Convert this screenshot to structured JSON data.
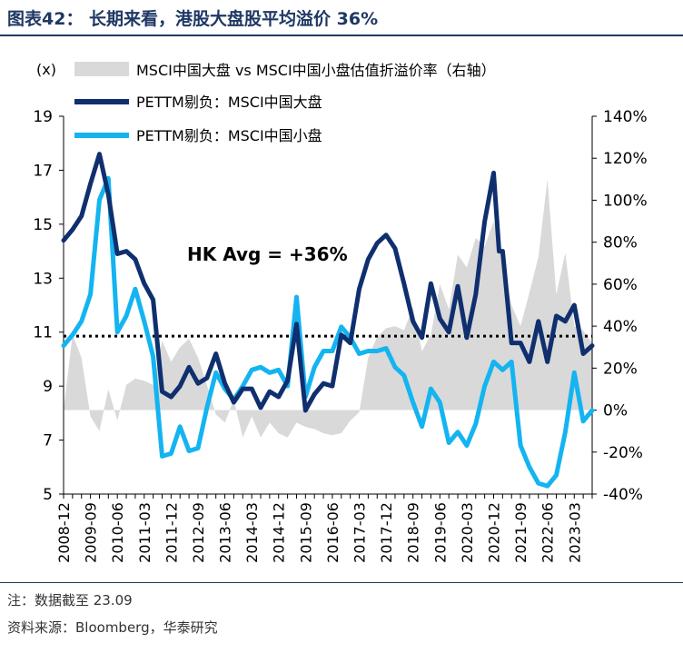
{
  "figure": {
    "title": "图表42： 长期来看，港股大盘股平均溢价 36%",
    "note": "注：数据截至 23.09",
    "source": "资料来源：Bloomberg，华泰研究"
  },
  "chart_data": {
    "type": "line",
    "left_axis_label": "(x)",
    "y_left": {
      "min": 5,
      "max": 19,
      "ticks": [
        5,
        7,
        9,
        11,
        13,
        15,
        17,
        19
      ]
    },
    "y_right": {
      "min": -40,
      "max": 140,
      "ticks": [
        -40,
        -20,
        0,
        20,
        40,
        60,
        80,
        100,
        120,
        140
      ],
      "tick_labels": [
        "-40%",
        "-20%",
        "0%",
        "20%",
        "40%",
        "60%",
        "80%",
        "100%",
        "120%",
        "140%"
      ]
    },
    "x_tick_labels": [
      "2008-12",
      "2009-09",
      "2010-06",
      "2011-03",
      "2011-12",
      "2012-09",
      "2013-06",
      "2014-03",
      "2014-12",
      "2015-09",
      "2016-06",
      "2017-03",
      "2017-12",
      "2018-09",
      "2019-06",
      "2020-03",
      "2020-12",
      "2021-09",
      "2022-06",
      "2023-03"
    ],
    "x_start": "2008-12",
    "x_end": "2023-09",
    "annotation": {
      "text": "HK Avg = +36%",
      "value": 10.85
    },
    "legend": {
      "placement": "top-left",
      "entries": [
        "MSCI中国大盘 vs MSCI中国小盘估值折溢价率（右轴）",
        "PETTM剔负：MSCI中国大盘",
        "PETTM剔负：MSCI中国小盘"
      ]
    },
    "colors": {
      "premium": "#d9d9d9",
      "large": "#0f2f6e",
      "small": "#14b4f0",
      "avg": "#000000"
    },
    "series": [
      {
        "name": "MSCI中国大盘 vs MSCI中国小盘估值折溢价率（右轴）",
        "axis": "right",
        "style": "area",
        "points": [
          [
            "2008-12",
            0
          ],
          [
            "2009-03",
            36
          ],
          [
            "2009-06",
            25
          ],
          [
            "2009-09",
            -3
          ],
          [
            "2009-12",
            -10
          ],
          [
            "2010-03",
            10
          ],
          [
            "2010-06",
            -5
          ],
          [
            "2010-09",
            12
          ],
          [
            "2010-12",
            15
          ],
          [
            "2011-03",
            14
          ],
          [
            "2011-06",
            12
          ],
          [
            "2011-09",
            33
          ],
          [
            "2011-12",
            23
          ],
          [
            "2012-03",
            30
          ],
          [
            "2012-06",
            34
          ],
          [
            "2012-09",
            25
          ],
          [
            "2012-12",
            12
          ],
          [
            "2013-03",
            -2
          ],
          [
            "2013-06",
            -6
          ],
          [
            "2013-09",
            5
          ],
          [
            "2013-12",
            -13
          ],
          [
            "2014-03",
            -3
          ],
          [
            "2014-06",
            -13
          ],
          [
            "2014-09",
            -6
          ],
          [
            "2014-12",
            -11
          ],
          [
            "2015-03",
            -13
          ],
          [
            "2015-06",
            -6
          ],
          [
            "2015-09",
            -8
          ],
          [
            "2015-12",
            -9
          ],
          [
            "2016-03",
            -11
          ],
          [
            "2016-06",
            -12
          ],
          [
            "2016-09",
            -11
          ],
          [
            "2016-12",
            -5
          ],
          [
            "2017-03",
            -1
          ],
          [
            "2017-06",
            25
          ],
          [
            "2017-09",
            35
          ],
          [
            "2017-12",
            39
          ],
          [
            "2018-03",
            40
          ],
          [
            "2018-06",
            38
          ],
          [
            "2018-09",
            49
          ],
          [
            "2018-12",
            28
          ],
          [
            "2019-03",
            36
          ],
          [
            "2019-06",
            60
          ],
          [
            "2019-09",
            48
          ],
          [
            "2019-12",
            74
          ],
          [
            "2020-03",
            68
          ],
          [
            "2020-06",
            82
          ],
          [
            "2020-09",
            78
          ],
          [
            "2020-12",
            90
          ],
          [
            "2021-03",
            73
          ],
          [
            "2021-06",
            50
          ],
          [
            "2021-09",
            40
          ],
          [
            "2021-12",
            56
          ],
          [
            "2022-03",
            73
          ],
          [
            "2022-06",
            110
          ],
          [
            "2022-09",
            55
          ],
          [
            "2022-12",
            75
          ],
          [
            "2023-03",
            40
          ],
          [
            "2023-06",
            38
          ],
          [
            "2023-09",
            32
          ]
        ]
      },
      {
        "name": "PETTM剔负：MSCI中国大盘",
        "axis": "left",
        "style": "line",
        "points": [
          [
            "2008-12",
            14.4
          ],
          [
            "2009-03",
            14.8
          ],
          [
            "2009-06",
            15.3
          ],
          [
            "2009-09",
            16.5
          ],
          [
            "2009-12",
            17.6
          ],
          [
            "2010-03",
            16.1
          ],
          [
            "2010-06",
            13.9
          ],
          [
            "2010-09",
            14.0
          ],
          [
            "2010-12",
            13.7
          ],
          [
            "2011-03",
            12.8
          ],
          [
            "2011-06",
            12.2
          ],
          [
            "2011-09",
            8.8
          ],
          [
            "2011-12",
            8.6
          ],
          [
            "2012-03",
            9.0
          ],
          [
            "2012-06",
            9.7
          ],
          [
            "2012-09",
            9.1
          ],
          [
            "2012-12",
            9.3
          ],
          [
            "2013-03",
            10.2
          ],
          [
            "2013-06",
            9.1
          ],
          [
            "2013-09",
            8.4
          ],
          [
            "2013-12",
            8.9
          ],
          [
            "2014-03",
            8.9
          ],
          [
            "2014-06",
            8.2
          ],
          [
            "2014-09",
            8.8
          ],
          [
            "2014-12",
            8.6
          ],
          [
            "2015-03",
            9.2
          ],
          [
            "2015-06",
            11.3
          ],
          [
            "2015-09",
            8.1
          ],
          [
            "2015-12",
            8.7
          ],
          [
            "2016-03",
            9.1
          ],
          [
            "2016-06",
            9.0
          ],
          [
            "2016-09",
            10.9
          ],
          [
            "2016-12",
            10.6
          ],
          [
            "2017-03",
            12.6
          ],
          [
            "2017-06",
            13.7
          ],
          [
            "2017-09",
            14.3
          ],
          [
            "2017-12",
            14.6
          ],
          [
            "2018-03",
            14.1
          ],
          [
            "2018-06",
            12.8
          ],
          [
            "2018-09",
            11.4
          ],
          [
            "2018-12",
            10.8
          ],
          [
            "2019-03",
            12.8
          ],
          [
            "2019-06",
            11.5
          ],
          [
            "2019-09",
            11.0
          ],
          [
            "2019-12",
            12.7
          ],
          [
            "2020-03",
            10.8
          ],
          [
            "2020-06",
            12.4
          ],
          [
            "2020-09",
            15.1
          ],
          [
            "2020-12",
            16.9
          ],
          [
            "2020-12b",
            14.0
          ],
          [
            "2021-03",
            14.0
          ],
          [
            "2021-06",
            10.6
          ],
          [
            "2021-09",
            10.6
          ],
          [
            "2021-12",
            9.9
          ],
          [
            "2022-03",
            11.4
          ],
          [
            "2022-06",
            9.9
          ],
          [
            "2022-09",
            11.6
          ],
          [
            "2022-12",
            11.4
          ],
          [
            "2023-03",
            12.0
          ],
          [
            "2023-06",
            10.2
          ],
          [
            "2023-09",
            10.5
          ]
        ]
      },
      {
        "name": "PETTM剔负：MSCI中国小盘",
        "axis": "left",
        "style": "line",
        "points": [
          [
            "2008-12",
            10.5
          ],
          [
            "2009-03",
            10.9
          ],
          [
            "2009-06",
            11.4
          ],
          [
            "2009-09",
            12.4
          ],
          [
            "2009-12",
            15.9
          ],
          [
            "2010-03",
            16.7
          ],
          [
            "2010-06",
            11.0
          ],
          [
            "2010-09",
            11.6
          ],
          [
            "2010-12",
            12.6
          ],
          [
            "2011-03",
            11.4
          ],
          [
            "2011-06",
            10.1
          ],
          [
            "2011-09",
            6.4
          ],
          [
            "2011-12",
            6.5
          ],
          [
            "2012-03",
            7.5
          ],
          [
            "2012-06",
            6.6
          ],
          [
            "2012-09",
            6.7
          ],
          [
            "2012-12",
            8.2
          ],
          [
            "2013-03",
            9.5
          ],
          [
            "2013-06",
            8.9
          ],
          [
            "2013-09",
            8.5
          ],
          [
            "2013-12",
            9.0
          ],
          [
            "2014-03",
            9.6
          ],
          [
            "2014-06",
            9.7
          ],
          [
            "2014-09",
            9.5
          ],
          [
            "2014-12",
            9.6
          ],
          [
            "2015-03",
            9.0
          ],
          [
            "2015-06",
            12.3
          ],
          [
            "2015-09",
            8.6
          ],
          [
            "2015-12",
            9.7
          ],
          [
            "2016-03",
            10.3
          ],
          [
            "2016-06",
            10.3
          ],
          [
            "2016-09",
            11.2
          ],
          [
            "2016-12",
            10.8
          ],
          [
            "2017-03",
            10.2
          ],
          [
            "2017-06",
            10.3
          ],
          [
            "2017-09",
            10.3
          ],
          [
            "2017-12",
            10.4
          ],
          [
            "2018-03",
            9.7
          ],
          [
            "2018-06",
            9.4
          ],
          [
            "2018-09",
            8.4
          ],
          [
            "2018-12",
            7.5
          ],
          [
            "2019-03",
            8.9
          ],
          [
            "2019-06",
            8.4
          ],
          [
            "2019-09",
            6.9
          ],
          [
            "2019-12",
            7.3
          ],
          [
            "2020-03",
            6.8
          ],
          [
            "2020-06",
            7.6
          ],
          [
            "2020-09",
            9.0
          ],
          [
            "2020-12",
            9.9
          ],
          [
            "2021-03",
            9.6
          ],
          [
            "2021-06",
            9.9
          ],
          [
            "2021-09",
            6.8
          ],
          [
            "2021-12",
            6.0
          ],
          [
            "2022-03",
            5.4
          ],
          [
            "2022-06",
            5.3
          ],
          [
            "2022-09",
            5.7
          ],
          [
            "2022-12",
            7.3
          ],
          [
            "2023-03",
            9.5
          ],
          [
            "2023-06",
            7.7
          ],
          [
            "2023-09",
            8.1
          ]
        ]
      }
    ]
  }
}
